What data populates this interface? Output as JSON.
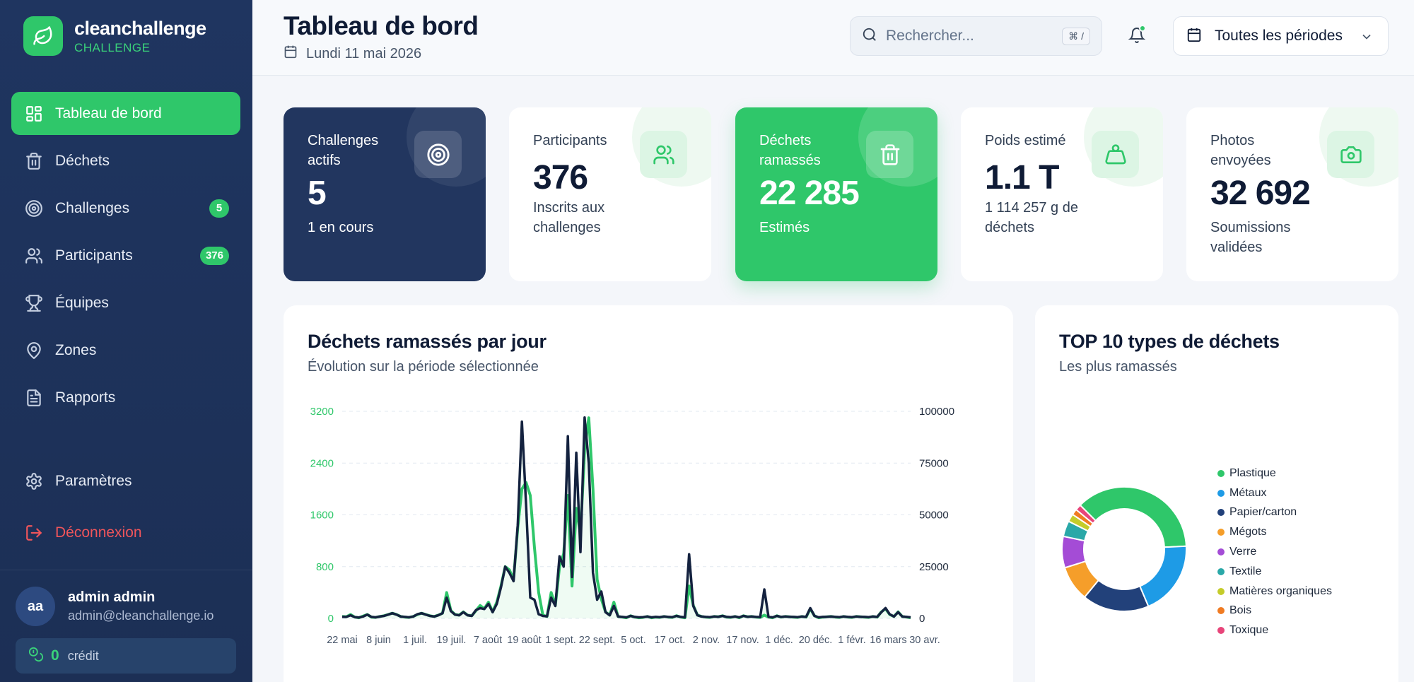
{
  "brand": {
    "name": "cleanchallenge",
    "subtitle": "CHALLENGE"
  },
  "nav": {
    "items": [
      {
        "id": "dashboard",
        "label": "Tableau de bord",
        "icon": "dashboard-grid-icon",
        "active": true,
        "badge": ""
      },
      {
        "id": "waste",
        "label": "Déchets",
        "icon": "trash-icon",
        "badge": ""
      },
      {
        "id": "challenges",
        "label": "Challenges",
        "icon": "target-icon",
        "badge": "5"
      },
      {
        "id": "participants",
        "label": "Participants",
        "icon": "users-icon",
        "badge": "376"
      },
      {
        "id": "teams",
        "label": "Équipes",
        "icon": "trophy-icon",
        "badge": ""
      },
      {
        "id": "zones",
        "label": "Zones",
        "icon": "map-pin-icon",
        "badge": ""
      },
      {
        "id": "reports",
        "label": "Rapports",
        "icon": "document-icon",
        "badge": ""
      }
    ],
    "settings_label": "Paramètres",
    "logout_label": "Déconnexion"
  },
  "user": {
    "initials": "aa",
    "name": "admin admin",
    "email": "admin@cleanchallenge.io",
    "credit_value": "0",
    "credit_label": "crédit"
  },
  "header": {
    "title": "Tableau de bord",
    "date": "Lundi 11 mai 2026",
    "search_placeholder": "Rechercher...",
    "search_shortcut": "⌘ /",
    "period_label": "Toutes les périodes"
  },
  "kpis": [
    {
      "label": "Challenges actifs",
      "value": "5",
      "sub": "1 en cours",
      "icon": "target-icon",
      "style": "dark"
    },
    {
      "label": "Participants",
      "value": "376",
      "sub": "Inscrits aux challenges",
      "icon": "users-icon",
      "style": "light"
    },
    {
      "label": "Déchets ramassés",
      "value": "22 285",
      "sub": "Estimés",
      "icon": "trash-icon",
      "style": "green"
    },
    {
      "label": "Poids estimé",
      "value": "1.1 T",
      "sub": "1 114 257 g de déchets",
      "icon": "weight-icon",
      "style": "light"
    },
    {
      "label": "Photos envoyées",
      "value": "32 692",
      "sub": "Soumissions validées",
      "icon": "camera-icon",
      "style": "light"
    }
  ],
  "line_panel": {
    "title": "Déchets ramassés par jour",
    "subtitle": "Évolution sur la période sélectionnée"
  },
  "donut_panel": {
    "title": "TOP 10 types de déchets",
    "subtitle": "Les plus ramassés"
  },
  "chart_data": [
    {
      "type": "line",
      "title": "Déchets ramassés par jour",
      "subtitle": "Évolution sur la période sélectionnée",
      "x_ticks": [
        "22 mai",
        "8 juin",
        "1 juil.",
        "19 juil.",
        "7 août",
        "19 août",
        "1 sept.",
        "22 sept.",
        "5 oct.",
        "17 oct.",
        "2 nov.",
        "17 nov.",
        "1 déc.",
        "20 déc.",
        "1 févr.",
        "16 mars",
        "30 avr."
      ],
      "y_left": {
        "ticks": [
          0,
          800,
          1600,
          2400,
          3200
        ],
        "range": [
          0,
          3200
        ],
        "color": "#2fc76a"
      },
      "y_right": {
        "ticks": [
          0,
          25000,
          50000,
          75000,
          100000
        ],
        "range": [
          0,
          100000
        ]
      },
      "grid": true,
      "series": [
        {
          "axis": "left",
          "color": "#2fc76a",
          "values": [
            30,
            25,
            60,
            20,
            10,
            35,
            60,
            20,
            15,
            30,
            40,
            60,
            80,
            60,
            30,
            20,
            15,
            30,
            60,
            80,
            60,
            40,
            30,
            50,
            80,
            400,
            120,
            60,
            50,
            100,
            50,
            40,
            120,
            200,
            150,
            250,
            100,
            250,
            500,
            800,
            750,
            600,
            1400,
            2000,
            2100,
            1900,
            1100,
            400,
            50,
            30,
            400,
            200,
            800,
            1000,
            1900,
            500,
            1700,
            1300,
            2600,
            3100,
            2000,
            600,
            300,
            100,
            50,
            250,
            30,
            20,
            10,
            40,
            20,
            10,
            15,
            30,
            10,
            20,
            15,
            30,
            20,
            15,
            40,
            20,
            10,
            500,
            200,
            50,
            30,
            20,
            15,
            30,
            25,
            40,
            20,
            15,
            30,
            10,
            40,
            25,
            30,
            20,
            15,
            50,
            20,
            10,
            40,
            20,
            30,
            25,
            20,
            15,
            30,
            20,
            150,
            40,
            10,
            20,
            25,
            30,
            20,
            15,
            30,
            20,
            15,
            30,
            25,
            20,
            15,
            30,
            20,
            100,
            150,
            60,
            30,
            100,
            30,
            20,
            10
          ]
        },
        {
          "axis": "right",
          "color": "#14223f",
          "values": [
            800,
            700,
            1500,
            600,
            400,
            900,
            1800,
            700,
            500,
            900,
            1200,
            1800,
            2500,
            1800,
            900,
            700,
            500,
            900,
            2000,
            2500,
            1800,
            1200,
            900,
            1500,
            2500,
            10000,
            3500,
            1800,
            1500,
            3000,
            1500,
            1200,
            4000,
            5000,
            4500,
            7000,
            3000,
            7000,
            15000,
            25000,
            22000,
            18000,
            45000,
            95000,
            55000,
            10000,
            9000,
            2000,
            1200,
            1000,
            10000,
            6000,
            30000,
            25000,
            88000,
            20000,
            80000,
            32000,
            97000,
            75000,
            22000,
            9000,
            13000,
            3000,
            1500,
            6000,
            900,
            700,
            500,
            1200,
            700,
            500,
            600,
            900,
            500,
            700,
            600,
            900,
            700,
            600,
            1200,
            700,
            500,
            31000,
            6000,
            1500,
            900,
            700,
            600,
            900,
            800,
            1200,
            700,
            600,
            900,
            500,
            1200,
            800,
            900,
            700,
            600,
            14000,
            700,
            500,
            1200,
            700,
            900,
            800,
            700,
            600,
            900,
            700,
            5000,
            1200,
            500,
            700,
            800,
            900,
            700,
            600,
            900,
            700,
            600,
            900,
            800,
            700,
            600,
            900,
            700,
            3000,
            5000,
            2000,
            900,
            3000,
            900,
            700,
            500
          ]
        }
      ]
    },
    {
      "type": "pie",
      "variant": "donut",
      "title": "TOP 10 types de déchets",
      "subtitle": "Les plus ramassés",
      "legend_position": "right",
      "slices": [
        {
          "label": "Plastique",
          "value": 36,
          "color": "#2fc76a"
        },
        {
          "label": "Métaux",
          "value": 19,
          "color": "#1e9be6"
        },
        {
          "label": "Papier/carton",
          "value": 17,
          "color": "#22417a"
        },
        {
          "label": "Mégots",
          "value": 9,
          "color": "#f59e2a"
        },
        {
          "label": "Verre",
          "value": 8,
          "color": "#a44cd6"
        },
        {
          "label": "Textile",
          "value": 4,
          "color": "#2aa8a8"
        },
        {
          "label": "Matières organiques",
          "value": 2,
          "color": "#c4cc2a"
        },
        {
          "label": "Bois",
          "value": 1.5,
          "color": "#f07b22"
        },
        {
          "label": "Toxique",
          "value": 1.5,
          "color": "#e8457a"
        }
      ]
    }
  ]
}
